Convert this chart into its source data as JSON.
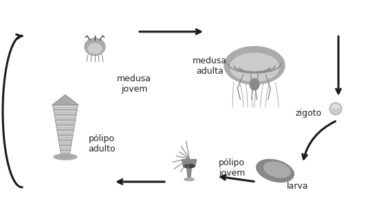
{
  "background_color": "#ffffff",
  "labels": {
    "medusa_jovem": "medusa\njovem",
    "medusa_adulta": "medusa\nadulta",
    "zigoto": "zigoto",
    "larva": "larva",
    "polipo_jovem": "pólipo\njovem",
    "polipo_adulto": "pólipo\nadulto"
  },
  "text_color": "#222222",
  "label_fontsize": 9,
  "fig_width": 5.35,
  "fig_height": 3.21,
  "dpi": 100
}
